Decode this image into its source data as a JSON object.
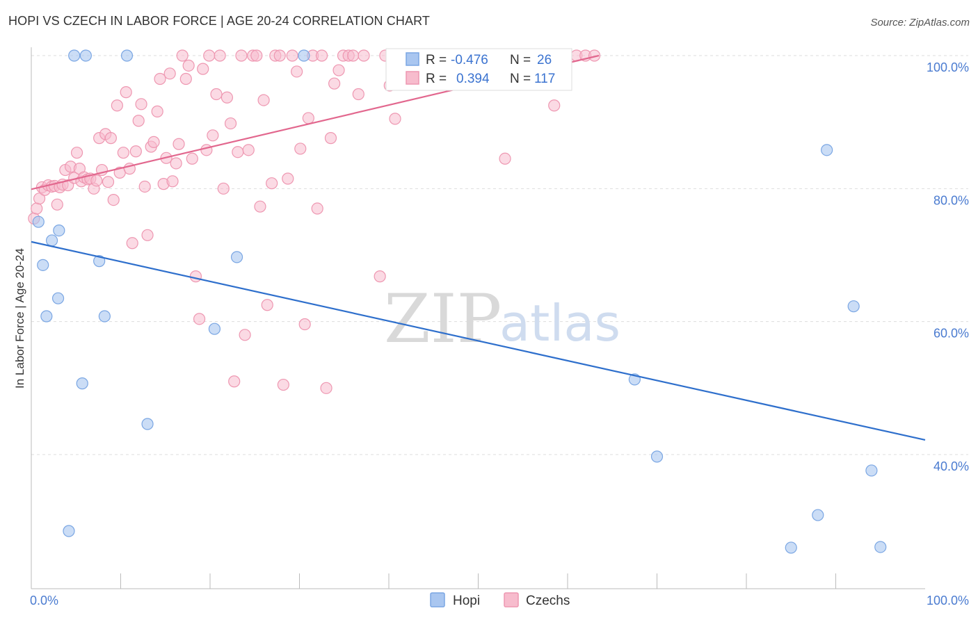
{
  "title": "HOPI VS CZECH IN LABOR FORCE | AGE 20-24 CORRELATION CHART",
  "source": "Source: ZipAtlas.com",
  "watermark": {
    "zip": "ZIP",
    "atlas": "atlas"
  },
  "colors": {
    "hopi_fill": "#a9c6f0",
    "hopi_stroke": "#7aa6e3",
    "hopi_line": "#2e6fcc",
    "czech_fill": "#f7bccd",
    "czech_stroke": "#ee97b1",
    "czech_line": "#e2678e",
    "tick_text": "#4a7bd0",
    "grid": "#dddddd"
  },
  "legend_box": {
    "rows": [
      {
        "r_label": "R =",
        "r_value": "-0.476",
        "n_label": "N =",
        "n_value": "26"
      },
      {
        "r_label": "R =",
        "r_value": "0.394",
        "n_label": "N =",
        "n_value": "117"
      }
    ]
  },
  "bottom_legend": {
    "hopi": "Hopi",
    "czechs": "Czechs"
  },
  "chart_data": {
    "type": "scatter",
    "title": "HOPI VS CZECH IN LABOR FORCE | AGE 20-24 CORRELATION CHART",
    "xlabel": "",
    "ylabel": "In Labor Force | Age 20-24",
    "xlim": [
      0,
      100
    ],
    "ylim": [
      20,
      102
    ],
    "x_tick_labels": [
      "0.0%",
      "100.0%"
    ],
    "y_ticks": [
      40,
      60,
      80,
      100
    ],
    "y_tick_labels": [
      "40.0%",
      "60.0%",
      "80.0%",
      "100.0%"
    ],
    "grid": true,
    "legend_position": "top-center",
    "series": [
      {
        "name": "Hopi",
        "r": -0.476,
        "n": 26,
        "trend": {
          "x": [
            0,
            100
          ],
          "y": [
            72.0,
            42.2
          ]
        },
        "points": [
          [
            0.8,
            75.0
          ],
          [
            1.3,
            68.5
          ],
          [
            1.7,
            60.8
          ],
          [
            2.3,
            72.2
          ],
          [
            3.0,
            63.5
          ],
          [
            3.1,
            73.7
          ],
          [
            4.2,
            28.5
          ],
          [
            4.8,
            100.0
          ],
          [
            5.7,
            50.7
          ],
          [
            6.1,
            100.0
          ],
          [
            7.6,
            69.1
          ],
          [
            8.2,
            60.8
          ],
          [
            10.7,
            100.0
          ],
          [
            13.0,
            44.6
          ],
          [
            20.5,
            58.9
          ],
          [
            23.0,
            69.7
          ],
          [
            30.5,
            100.0
          ],
          [
            45.2,
            100.0
          ],
          [
            67.5,
            51.3
          ],
          [
            70.0,
            39.7
          ],
          [
            85.0,
            26.0
          ],
          [
            88.0,
            30.9
          ],
          [
            89.0,
            85.8
          ],
          [
            92.0,
            62.3
          ],
          [
            94.0,
            37.6
          ],
          [
            95.0,
            26.1
          ]
        ]
      },
      {
        "name": "Czechs",
        "r": 0.394,
        "n": 117,
        "trend": {
          "x": [
            0,
            63.5
          ],
          "y": [
            79.9,
            100.0
          ]
        },
        "points": [
          [
            0.3,
            75.5
          ],
          [
            0.6,
            77.0
          ],
          [
            0.9,
            78.5
          ],
          [
            1.2,
            80.2
          ],
          [
            1.5,
            79.8
          ],
          [
            1.9,
            80.5
          ],
          [
            2.3,
            80.3
          ],
          [
            2.6,
            80.4
          ],
          [
            2.9,
            77.6
          ],
          [
            3.2,
            80.2
          ],
          [
            3.5,
            80.6
          ],
          [
            3.8,
            82.8
          ],
          [
            4.1,
            80.5
          ],
          [
            4.4,
            83.3
          ],
          [
            4.8,
            81.6
          ],
          [
            5.1,
            85.4
          ],
          [
            5.4,
            83.0
          ],
          [
            5.6,
            81.1
          ],
          [
            5.9,
            81.7
          ],
          [
            6.3,
            81.4
          ],
          [
            6.6,
            81.5
          ],
          [
            7.0,
            80.0
          ],
          [
            7.3,
            81.2
          ],
          [
            7.6,
            87.6
          ],
          [
            7.9,
            82.8
          ],
          [
            8.3,
            88.2
          ],
          [
            8.6,
            81.0
          ],
          [
            8.9,
            87.6
          ],
          [
            9.2,
            78.3
          ],
          [
            9.6,
            92.5
          ],
          [
            9.9,
            82.4
          ],
          [
            10.3,
            85.4
          ],
          [
            10.6,
            94.5
          ],
          [
            11.0,
            83.0
          ],
          [
            11.3,
            71.8
          ],
          [
            11.7,
            85.6
          ],
          [
            12.0,
            90.2
          ],
          [
            12.3,
            92.7
          ],
          [
            12.7,
            80.3
          ],
          [
            13.0,
            73.0
          ],
          [
            13.4,
            86.3
          ],
          [
            13.7,
            87.0
          ],
          [
            14.1,
            91.6
          ],
          [
            14.4,
            96.5
          ],
          [
            14.8,
            80.7
          ],
          [
            15.1,
            84.6
          ],
          [
            15.5,
            97.3
          ],
          [
            15.8,
            81.1
          ],
          [
            16.2,
            83.8
          ],
          [
            16.5,
            86.7
          ],
          [
            16.9,
            100.0
          ],
          [
            17.3,
            96.5
          ],
          [
            17.6,
            98.5
          ],
          [
            18.0,
            84.5
          ],
          [
            18.4,
            66.8
          ],
          [
            18.8,
            60.4
          ],
          [
            19.2,
            98.0
          ],
          [
            19.6,
            85.8
          ],
          [
            19.9,
            100.0
          ],
          [
            20.3,
            88.0
          ],
          [
            20.7,
            94.2
          ],
          [
            21.1,
            100.0
          ],
          [
            21.5,
            80.0
          ],
          [
            21.9,
            93.7
          ],
          [
            22.3,
            89.8
          ],
          [
            22.7,
            51.0
          ],
          [
            23.1,
            85.5
          ],
          [
            23.5,
            100.0
          ],
          [
            23.9,
            58.0
          ],
          [
            24.3,
            85.8
          ],
          [
            24.8,
            100.0
          ],
          [
            25.2,
            100.0
          ],
          [
            25.6,
            77.3
          ],
          [
            26.0,
            93.3
          ],
          [
            26.4,
            62.5
          ],
          [
            26.9,
            80.8
          ],
          [
            27.3,
            100.0
          ],
          [
            27.8,
            100.0
          ],
          [
            28.2,
            50.5
          ],
          [
            28.7,
            81.5
          ],
          [
            29.2,
            100.0
          ],
          [
            29.7,
            97.6
          ],
          [
            30.1,
            86.0
          ],
          [
            30.6,
            59.6
          ],
          [
            31.0,
            90.6
          ],
          [
            31.5,
            100.0
          ],
          [
            32.0,
            77.0
          ],
          [
            32.5,
            100.0
          ],
          [
            33.0,
            50.0
          ],
          [
            33.5,
            87.6
          ],
          [
            33.9,
            95.8
          ],
          [
            34.4,
            97.8
          ],
          [
            34.9,
            100.0
          ],
          [
            35.5,
            100.0
          ],
          [
            36.0,
            100.0
          ],
          [
            36.6,
            94.2
          ],
          [
            37.2,
            100.0
          ],
          [
            39.0,
            66.8
          ],
          [
            39.6,
            100.0
          ],
          [
            40.1,
            95.5
          ],
          [
            40.7,
            90.5
          ],
          [
            41.5,
            100.0
          ],
          [
            42.3,
            100.0
          ],
          [
            43.5,
            100.0
          ],
          [
            44.5,
            100.0
          ],
          [
            46.0,
            100.0
          ],
          [
            47.5,
            100.0
          ],
          [
            48.5,
            100.0
          ],
          [
            50.5,
            100.0
          ],
          [
            52.0,
            100.0
          ],
          [
            53.0,
            84.5
          ],
          [
            55.0,
            100.0
          ],
          [
            57.5,
            100.0
          ],
          [
            58.5,
            92.5
          ],
          [
            61.0,
            100.0
          ],
          [
            62.0,
            100.0
          ],
          [
            63.0,
            100.0
          ]
        ]
      }
    ]
  }
}
